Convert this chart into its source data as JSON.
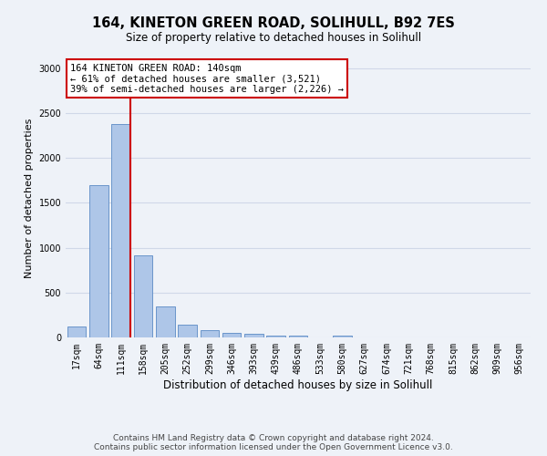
{
  "title": "164, KINETON GREEN ROAD, SOLIHULL, B92 7ES",
  "subtitle": "Size of property relative to detached houses in Solihull",
  "xlabel": "Distribution of detached houses by size in Solihull",
  "ylabel": "Number of detached properties",
  "categories": [
    "17sqm",
    "64sqm",
    "111sqm",
    "158sqm",
    "205sqm",
    "252sqm",
    "299sqm",
    "346sqm",
    "393sqm",
    "439sqm",
    "486sqm",
    "533sqm",
    "580sqm",
    "627sqm",
    "674sqm",
    "721sqm",
    "768sqm",
    "815sqm",
    "862sqm",
    "909sqm",
    "956sqm"
  ],
  "values": [
    120,
    1700,
    2380,
    910,
    345,
    140,
    85,
    55,
    40,
    25,
    20,
    5,
    25,
    0,
    0,
    0,
    0,
    0,
    0,
    0,
    0
  ],
  "bar_color": "#aec6e8",
  "bar_edge_color": "#5b8ac5",
  "highlight_index": 2,
  "highlight_line_color": "#cc0000",
  "annotation_text": "164 KINETON GREEN ROAD: 140sqm\n← 61% of detached houses are smaller (3,521)\n39% of semi-detached houses are larger (2,226) →",
  "annotation_box_color": "#ffffff",
  "annotation_box_edge_color": "#cc0000",
  "ylim": [
    0,
    3100
  ],
  "yticks": [
    0,
    500,
    1000,
    1500,
    2000,
    2500,
    3000
  ],
  "grid_color": "#d0d8e8",
  "background_color": "#eef2f8",
  "footer_line1": "Contains HM Land Registry data © Crown copyright and database right 2024.",
  "footer_line2": "Contains public sector information licensed under the Open Government Licence v3.0.",
  "title_fontsize": 10.5,
  "subtitle_fontsize": 8.5,
  "xlabel_fontsize": 8.5,
  "ylabel_fontsize": 8,
  "tick_fontsize": 7,
  "footer_fontsize": 6.5,
  "annot_fontsize": 7.5
}
